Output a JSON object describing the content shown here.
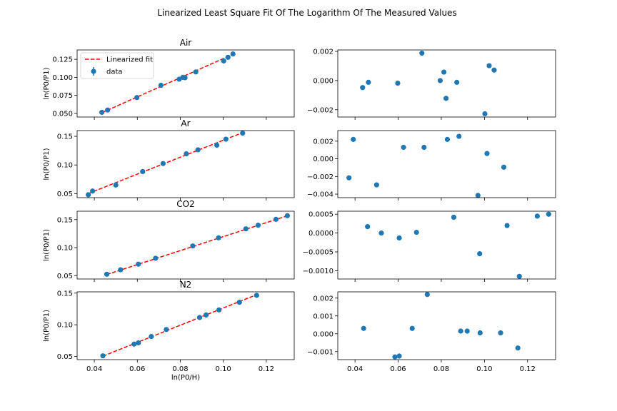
{
  "figure": {
    "suptitle": "Linearized Least Square Fit Of The Logarithm Of The Measured Values"
  },
  "legend": {
    "fit_label": "Linearized fit",
    "data_label": "data"
  },
  "colors": {
    "points": "#1f77b4",
    "fit": "#ff0000",
    "axis": "#000000"
  },
  "chart_data": [
    {
      "type": "scatter",
      "title": "Air",
      "ylabel": "ln(P0/P1)",
      "xlabel": "",
      "xlim": [
        0.032,
        0.133
      ],
      "ylim": [
        0.045,
        0.138
      ],
      "yticks": [
        0.05,
        0.075,
        0.1,
        0.125
      ],
      "ytick_labels": [
        "0.050",
        "0.075",
        "0.100",
        "0.125"
      ],
      "legend_position": "upper-left",
      "x": [
        0.0435,
        0.0462,
        0.0598,
        0.071,
        0.0795,
        0.0812,
        0.0822,
        0.0872,
        0.1002,
        0.1022,
        0.1045
      ],
      "y": [
        0.0515,
        0.0547,
        0.072,
        0.089,
        0.0975,
        0.1,
        0.0995,
        0.1075,
        0.1228,
        0.1278,
        0.1325
      ],
      "fit": {
        "x": [
          0.0435,
          0.1045
        ],
        "y": [
          0.051,
          0.132
        ]
      }
    },
    {
      "type": "scatter",
      "title": "Ar",
      "ylabel": "ln(P0/P1)",
      "xlabel": "",
      "xlim": [
        0.032,
        0.133
      ],
      "ylim": [
        0.043,
        0.16
      ],
      "yticks": [
        0.05,
        0.1,
        0.15
      ],
      "ytick_labels": [
        "0.05",
        "0.10",
        "0.15"
      ],
      "x": [
        0.0372,
        0.0392,
        0.05,
        0.0625,
        0.072,
        0.0828,
        0.0882,
        0.097,
        0.1012,
        0.109
      ],
      "y": [
        0.048,
        0.0545,
        0.065,
        0.0885,
        0.1025,
        0.1195,
        0.1265,
        0.1345,
        0.145,
        0.1555
      ],
      "fit": {
        "x": [
          0.0372,
          0.109
        ],
        "y": [
          0.0502,
          0.1565
        ]
      }
    },
    {
      "type": "scatter",
      "title": "CO2",
      "ylabel": "ln(P0/P1)",
      "xlabel": "",
      "xlim": [
        0.032,
        0.133
      ],
      "ylim": [
        0.044,
        0.165
      ],
      "yticks": [
        0.05,
        0.1,
        0.15
      ],
      "ytick_labels": [
        "0.05",
        "0.10",
        "0.15"
      ],
      "x": [
        0.0458,
        0.0522,
        0.0605,
        0.0685,
        0.0858,
        0.0978,
        0.1105,
        0.1162,
        0.1245,
        0.1298
      ],
      "y": [
        0.0525,
        0.0605,
        0.0705,
        0.081,
        0.103,
        0.1175,
        0.1335,
        0.14,
        0.1505,
        0.157
      ],
      "fit": {
        "x": [
          0.0458,
          0.1298
        ],
        "y": [
          0.052,
          0.1568
        ]
      }
    },
    {
      "type": "scatter",
      "title": "N2",
      "ylabel": "ln(P0/P1)",
      "xlabel": "ln(P0/H)",
      "xlim": [
        0.032,
        0.133
      ],
      "xticks": [
        0.04,
        0.06,
        0.08,
        0.1,
        0.12
      ],
      "xtick_labels": [
        "0.04",
        "0.06",
        "0.08",
        "0.10",
        "0.12"
      ],
      "ylim": [
        0.045,
        0.152
      ],
      "yticks": [
        0.05,
        0.1,
        0.15
      ],
      "ytick_labels": [
        "0.05",
        "0.10",
        "0.15"
      ],
      "x": [
        0.044,
        0.0585,
        0.0605,
        0.0665,
        0.0735,
        0.089,
        0.092,
        0.098,
        0.1075,
        0.1155
      ],
      "y": [
        0.051,
        0.0695,
        0.0715,
        0.0815,
        0.0925,
        0.1115,
        0.1155,
        0.1235,
        0.1355,
        0.1465
      ],
      "fit": {
        "x": [
          0.044,
          0.1155
        ],
        "y": [
          0.0505,
          0.1475
        ]
      }
    },
    {
      "type": "scatter",
      "title": "",
      "xlabel": "",
      "xlim": [
        0.032,
        0.133
      ],
      "ylim": [
        -0.0025,
        0.0021
      ],
      "yticks": [
        -0.002,
        0.0,
        0.002
      ],
      "ytick_labels": [
        "−0.002",
        "0.000",
        "0.002"
      ],
      "x": [
        0.0435,
        0.0462,
        0.0598,
        0.071,
        0.0795,
        0.0812,
        0.0822,
        0.0872,
        0.1002,
        0.1022,
        0.1045
      ],
      "y": [
        -0.00048,
        -0.00012,
        -0.00018,
        0.00188,
        0.0,
        0.00058,
        -0.00122,
        -0.00012,
        -0.00228,
        0.00102,
        0.00072
      ]
    },
    {
      "type": "scatter",
      "title": "",
      "xlabel": "",
      "xlim": [
        0.032,
        0.133
      ],
      "ylim": [
        -0.0044,
        0.0032
      ],
      "yticks": [
        -0.004,
        -0.002,
        0.0,
        0.002
      ],
      "ytick_labels": [
        "−0.004",
        "−0.002",
        "0.000",
        "0.002"
      ],
      "x": [
        0.0372,
        0.0392,
        0.05,
        0.0625,
        0.072,
        0.0828,
        0.0882,
        0.097,
        0.1012,
        0.109
      ],
      "y": [
        -0.00215,
        0.0022,
        -0.00295,
        0.0013,
        0.0013,
        0.0022,
        0.00255,
        -0.00415,
        0.0006,
        -0.00095
      ]
    },
    {
      "type": "scatter",
      "title": "",
      "xlabel": "",
      "xlim": [
        0.032,
        0.133
      ],
      "ylim": [
        -0.00122,
        0.00058
      ],
      "yticks": [
        -0.001,
        -0.0005,
        0.0,
        0.0005
      ],
      "ytick_labels": [
        "−0.0010",
        "−0.0005",
        "0.0000",
        "0.0005"
      ],
      "x": [
        0.0458,
        0.0522,
        0.0605,
        0.0685,
        0.0858,
        0.0978,
        0.1105,
        0.1162,
        0.1245,
        0.1298
      ],
      "y": [
        0.00017,
        0.0,
        -0.00013,
        2e-05,
        0.00042,
        -0.00055,
        0.0002,
        -0.00115,
        0.00045,
        0.0005
      ]
    },
    {
      "type": "scatter",
      "title": "",
      "xlabel": "",
      "xlim": [
        0.032,
        0.133
      ],
      "xticks": [
        0.04,
        0.06,
        0.08,
        0.1,
        0.12
      ],
      "xtick_labels": [
        "0.04",
        "0.06",
        "0.08",
        "0.10",
        "0.12"
      ],
      "ylim": [
        -0.00145,
        0.00235
      ],
      "yticks": [
        -0.001,
        0.0,
        0.001,
        0.002
      ],
      "ytick_labels": [
        "−0.001",
        "0.000",
        "0.001",
        "0.002"
      ],
      "x": [
        0.044,
        0.0585,
        0.0605,
        0.0665,
        0.0735,
        0.089,
        0.092,
        0.098,
        0.1075,
        0.1155
      ],
      "y": [
        0.0003,
        -0.0013,
        -0.00125,
        0.0003,
        0.0022,
        0.00015,
        0.00015,
        5e-05,
        5e-05,
        -0.0008
      ]
    }
  ]
}
